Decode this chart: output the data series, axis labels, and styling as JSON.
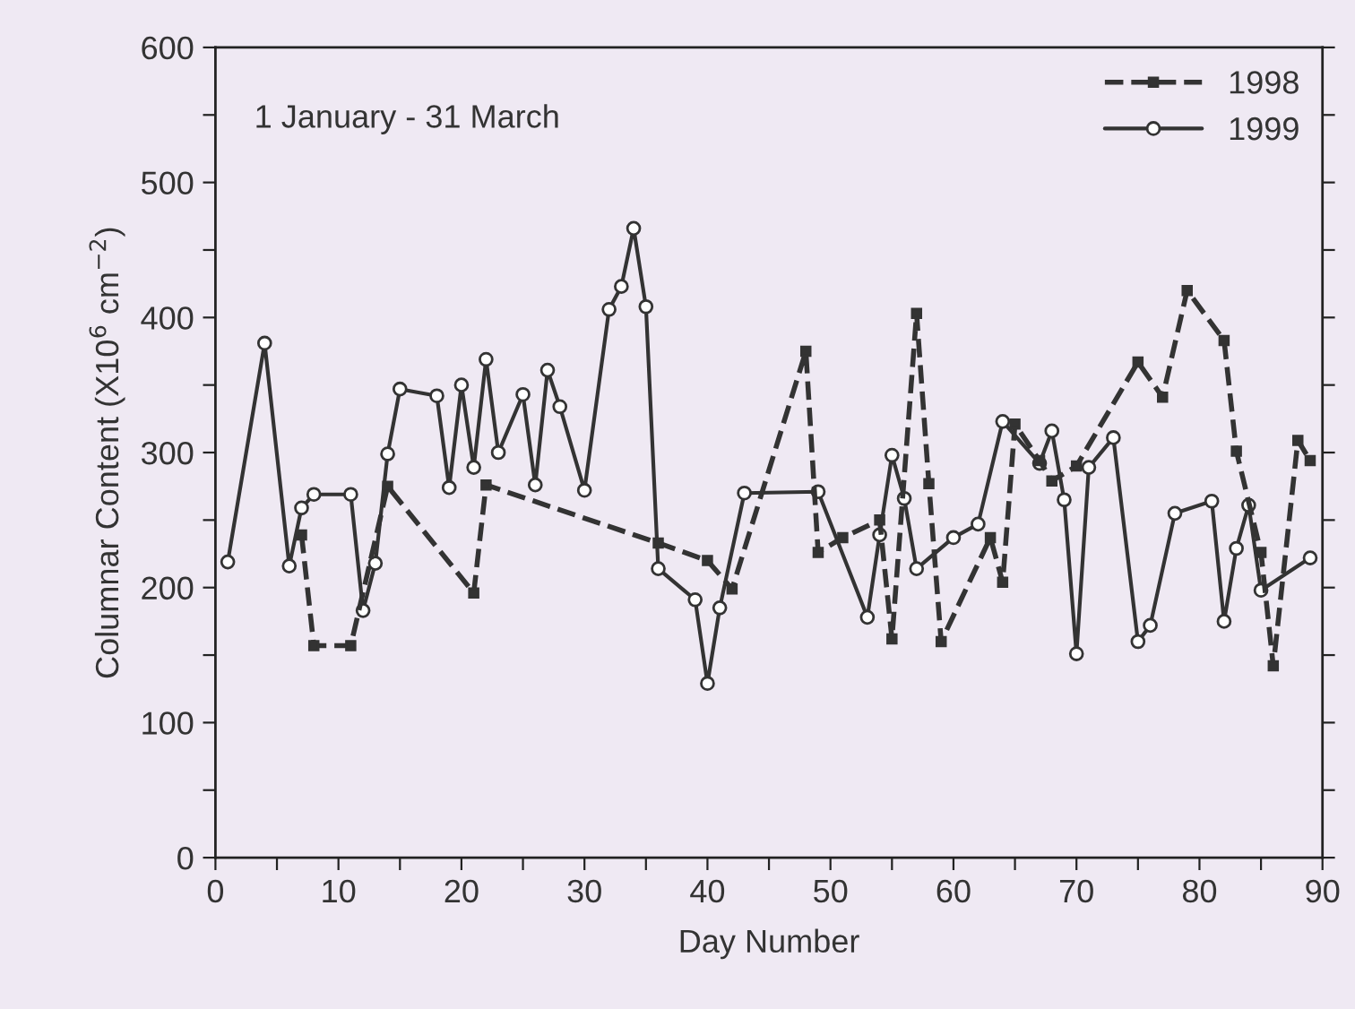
{
  "chart_data": {
    "type": "line",
    "xlabel": "Day Number",
    "ylabel": "Columnar Content (X10$^{6}$ cm$^{−2}$)",
    "annotations": [
      "1 January - 31 March"
    ],
    "series": [
      {
        "name": "1998",
        "color": "#333333",
        "line_style": "dashed",
        "marker": "square",
        "x": [
          7,
          8,
          11,
          14,
          21,
          22,
          36,
          40,
          42,
          48,
          49,
          51,
          54,
          55,
          57,
          58,
          59,
          63,
          64,
          65,
          67,
          68,
          70,
          75,
          77,
          79,
          82,
          83,
          85,
          86,
          88,
          89
        ],
        "values": [
          239,
          157,
          157,
          275,
          196,
          276,
          233,
          220,
          199,
          375,
          226,
          237,
          250,
          162,
          403,
          277,
          160,
          237,
          204,
          321,
          294,
          279,
          290,
          367,
          341,
          420,
          383,
          301,
          226,
          142,
          309,
          294
        ]
      },
      {
        "name": "1999",
        "color": "#333333",
        "line_style": "solid",
        "marker": "circle",
        "x": [
          1,
          4,
          6,
          7,
          8,
          11,
          12,
          13,
          14,
          15,
          18,
          19,
          20,
          21,
          22,
          23,
          25,
          26,
          27,
          28,
          30,
          32,
          33,
          34,
          35,
          36,
          39,
          40,
          41,
          43,
          49,
          53,
          54,
          55,
          56,
          57,
          60,
          62,
          64,
          67,
          68,
          69,
          70,
          71,
          73,
          75,
          76,
          78,
          81,
          82,
          83,
          84,
          85,
          89
        ],
        "values": [
          219,
          381,
          216,
          259,
          269,
          269,
          183,
          218,
          299,
          347,
          342,
          274,
          350,
          289,
          369,
          300,
          343,
          276,
          361,
          334,
          272,
          406,
          423,
          466,
          408,
          214,
          191,
          129,
          185,
          270,
          271,
          178,
          239,
          298,
          266,
          214,
          237,
          247,
          323,
          292,
          316,
          265,
          151,
          289,
          311,
          160,
          172,
          255,
          264,
          175,
          229,
          261,
          198,
          222
        ]
      }
    ],
    "xlim": [
      0,
      90
    ],
    "xticks": [
      0,
      {
        "value": 5,
        "label": null
      },
      10,
      {
        "value": 15,
        "label": null
      },
      20,
      {
        "value": 25,
        "label": null
      },
      30,
      {
        "value": 35,
        "label": null
      },
      40,
      {
        "value": 45,
        "label": null
      },
      50,
      {
        "value": 55,
        "label": null
      },
      60,
      {
        "value": 65,
        "label": null
      },
      70,
      {
        "value": 75,
        "label": null
      },
      80,
      {
        "value": 85,
        "label": null
      },
      90
    ],
    "ylim": [
      0,
      600
    ],
    "yticks": [
      0,
      {
        "value": 50,
        "label": null
      },
      100,
      {
        "value": 150,
        "label": null
      },
      200,
      {
        "value": 250,
        "label": null
      },
      300,
      {
        "value": 350,
        "label": null
      },
      400,
      {
        "value": 450,
        "label": null
      },
      500,
      {
        "value": 550,
        "label": null
      },
      600
    ],
    "grid": false,
    "legend": "top right"
  }
}
